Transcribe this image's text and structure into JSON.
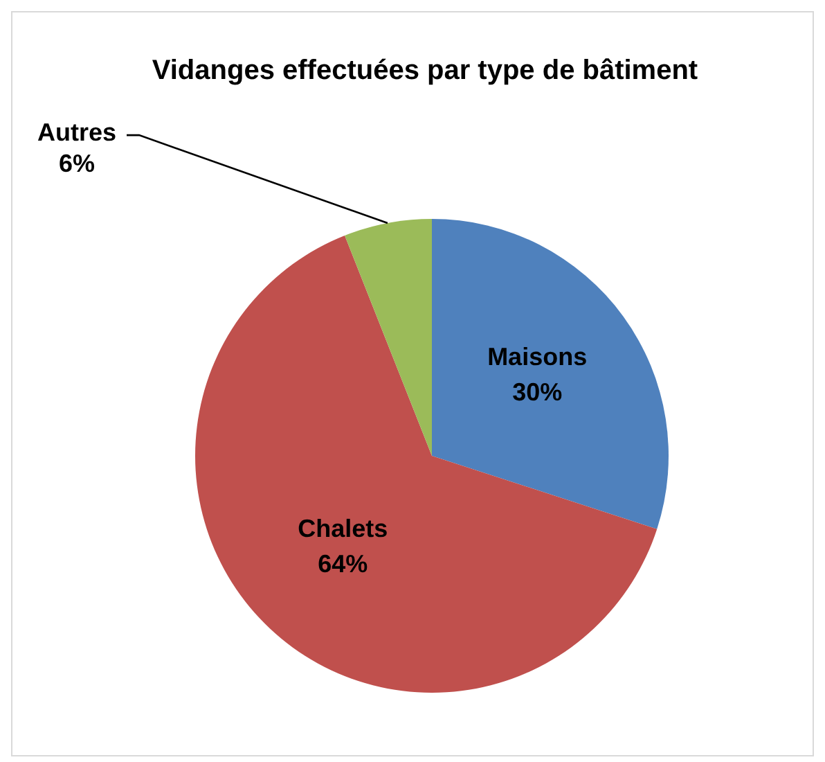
{
  "chart_data": {
    "type": "pie",
    "title": "Vidanges effectuées par type de bâtiment",
    "categories": [
      "Maisons",
      "Chalets",
      "Autres"
    ],
    "values": [
      30,
      64,
      6
    ],
    "value_labels": [
      "30%",
      "64%",
      "6%"
    ],
    "colors": [
      "#4f81bd",
      "#c0504d",
      "#9bbb59"
    ],
    "legend": false
  }
}
